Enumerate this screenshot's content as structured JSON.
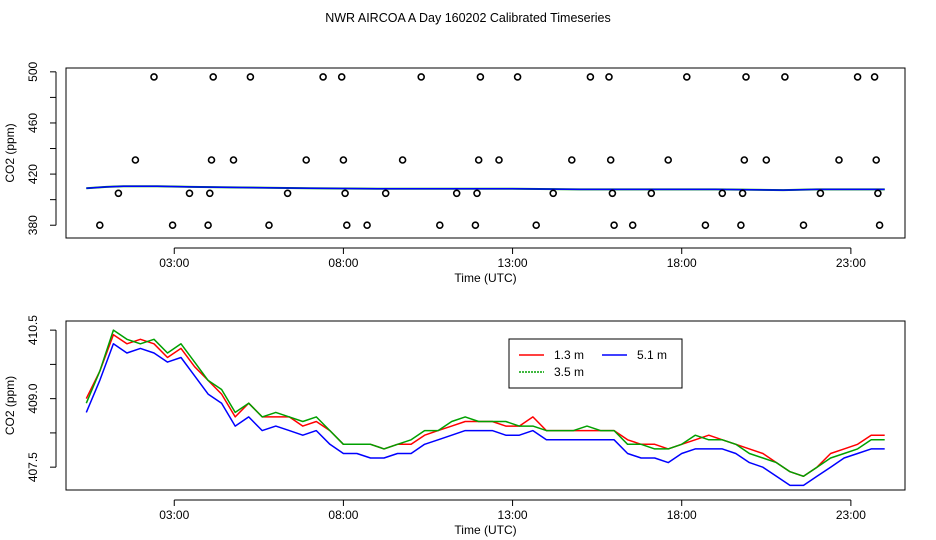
{
  "title": "NWR AIRCOA A  Day 160202  Calibrated Timeseries",
  "chart_data": [
    {
      "type": "scatter",
      "xlabel": "Time (UTC)",
      "ylabel": "CO2 (ppm)",
      "xlim": [
        -0.2,
        24.6
      ],
      "ylim": [
        370,
        503
      ],
      "xticks": [
        3,
        8,
        13,
        18,
        23
      ],
      "xtick_labels": [
        "03:00",
        "08:00",
        "13:00",
        "18:00",
        "23:00"
      ],
      "yticks": [
        380,
        420,
        460,
        500
      ],
      "ytick_labels": [
        "380",
        "420",
        "460",
        "500"
      ],
      "grid": false,
      "points": [
        {
          "x": 0.8,
          "y": 380
        },
        {
          "x": 1.35,
          "y": 405
        },
        {
          "x": 1.85,
          "y": 431
        },
        {
          "x": 2.4,
          "y": 496
        },
        {
          "x": 2.95,
          "y": 380
        },
        {
          "x": 3.45,
          "y": 405
        },
        {
          "x": 4.0,
          "y": 380
        },
        {
          "x": 4.05,
          "y": 405
        },
        {
          "x": 4.1,
          "y": 431
        },
        {
          "x": 4.15,
          "y": 496
        },
        {
          "x": 4.75,
          "y": 431
        },
        {
          "x": 5.25,
          "y": 496
        },
        {
          "x": 5.8,
          "y": 380
        },
        {
          "x": 6.35,
          "y": 405
        },
        {
          "x": 6.9,
          "y": 431
        },
        {
          "x": 7.4,
          "y": 496
        },
        {
          "x": 7.95,
          "y": 496
        },
        {
          "x": 8.0,
          "y": 431
        },
        {
          "x": 8.05,
          "y": 405
        },
        {
          "x": 8.1,
          "y": 380
        },
        {
          "x": 8.7,
          "y": 380
        },
        {
          "x": 9.25,
          "y": 405
        },
        {
          "x": 9.75,
          "y": 431
        },
        {
          "x": 10.3,
          "y": 496
        },
        {
          "x": 10.85,
          "y": 380
        },
        {
          "x": 11.35,
          "y": 405
        },
        {
          "x": 11.9,
          "y": 380
        },
        {
          "x": 11.95,
          "y": 405
        },
        {
          "x": 12.0,
          "y": 431
        },
        {
          "x": 12.05,
          "y": 496
        },
        {
          "x": 12.6,
          "y": 431
        },
        {
          "x": 13.15,
          "y": 496
        },
        {
          "x": 13.7,
          "y": 380
        },
        {
          "x": 14.2,
          "y": 405
        },
        {
          "x": 14.75,
          "y": 431
        },
        {
          "x": 15.3,
          "y": 496
        },
        {
          "x": 15.85,
          "y": 496
        },
        {
          "x": 15.9,
          "y": 431
        },
        {
          "x": 15.95,
          "y": 405
        },
        {
          "x": 16.0,
          "y": 380
        },
        {
          "x": 16.55,
          "y": 380
        },
        {
          "x": 17.1,
          "y": 405
        },
        {
          "x": 17.6,
          "y": 431
        },
        {
          "x": 18.15,
          "y": 496
        },
        {
          "x": 18.7,
          "y": 380
        },
        {
          "x": 19.2,
          "y": 405
        },
        {
          "x": 19.75,
          "y": 380
        },
        {
          "x": 19.8,
          "y": 405
        },
        {
          "x": 19.85,
          "y": 431
        },
        {
          "x": 19.9,
          "y": 496
        },
        {
          "x": 20.5,
          "y": 431
        },
        {
          "x": 21.05,
          "y": 496
        },
        {
          "x": 21.6,
          "y": 380
        },
        {
          "x": 22.1,
          "y": 405
        },
        {
          "x": 22.65,
          "y": 431
        },
        {
          "x": 23.2,
          "y": 496
        },
        {
          "x": 23.7,
          "y": 496
        },
        {
          "x": 23.75,
          "y": 431
        },
        {
          "x": 23.8,
          "y": 405
        },
        {
          "x": 23.85,
          "y": 380
        }
      ],
      "line": {
        "x": [
          0.4,
          1.0,
          1.5,
          2.5,
          3.5,
          5.0,
          7.0,
          9.0,
          11.0,
          13.0,
          15.0,
          17.0,
          19.0,
          21.0,
          22.0,
          23.0,
          24.0
        ],
        "y": [
          409,
          410,
          410.5,
          410.5,
          410,
          409.5,
          409,
          408.5,
          408.5,
          408.5,
          408,
          408,
          408,
          407.5,
          408,
          408,
          408
        ]
      }
    },
    {
      "type": "line",
      "xlabel": "Time (UTC)",
      "ylabel": "CO2 (ppm)",
      "xlim": [
        -0.2,
        24.6
      ],
      "ylim": [
        407.0,
        410.7
      ],
      "xticks": [
        3,
        8,
        13,
        18,
        23
      ],
      "xtick_labels": [
        "03:00",
        "08:00",
        "13:00",
        "18:00",
        "23:00"
      ],
      "yticks": [
        407.5,
        409.0,
        410.5
      ],
      "ytick_labels": [
        "407.5",
        "409.0",
        "410.5"
      ],
      "grid": false,
      "legend": "top-center",
      "series": [
        {
          "name": "1.3 m",
          "color": "#ff0000",
          "x": [
            0.4,
            0.8,
            1.2,
            1.6,
            2.0,
            2.4,
            2.8,
            3.2,
            3.6,
            4.0,
            4.4,
            4.8,
            5.2,
            5.6,
            6.0,
            6.4,
            6.8,
            7.2,
            7.6,
            8.0,
            8.4,
            8.8,
            9.2,
            9.6,
            10.0,
            10.4,
            10.8,
            11.2,
            11.6,
            12.0,
            12.4,
            12.8,
            13.2,
            13.6,
            14.0,
            14.4,
            14.8,
            15.2,
            15.6,
            16.0,
            16.4,
            16.8,
            17.2,
            17.6,
            18.0,
            18.4,
            18.8,
            19.2,
            19.6,
            20.0,
            20.4,
            20.8,
            21.2,
            21.6,
            22.0,
            22.4,
            22.8,
            23.2,
            23.6,
            24.0
          ],
          "y": [
            409.0,
            409.6,
            410.4,
            410.2,
            410.3,
            410.2,
            409.9,
            410.1,
            409.7,
            409.4,
            409.1,
            408.6,
            408.9,
            408.6,
            408.6,
            408.6,
            408.4,
            408.5,
            408.3,
            408.0,
            408.0,
            408.0,
            407.9,
            408.0,
            408.0,
            408.2,
            408.3,
            408.4,
            408.5,
            408.5,
            408.5,
            408.4,
            408.4,
            408.6,
            408.3,
            408.3,
            408.3,
            408.3,
            408.3,
            408.3,
            408.1,
            408.0,
            408.0,
            407.9,
            408.0,
            408.1,
            408.2,
            408.1,
            408.0,
            407.9,
            407.8,
            407.6,
            407.4,
            407.3,
            407.5,
            407.8,
            407.9,
            408.0,
            408.2,
            408.2
          ]
        },
        {
          "name": "3.5 m",
          "color": "#00a000",
          "x": [
            0.4,
            0.8,
            1.2,
            1.6,
            2.0,
            2.4,
            2.8,
            3.2,
            3.6,
            4.0,
            4.4,
            4.8,
            5.2,
            5.6,
            6.0,
            6.4,
            6.8,
            7.2,
            7.6,
            8.0,
            8.4,
            8.8,
            9.2,
            9.6,
            10.0,
            10.4,
            10.8,
            11.2,
            11.6,
            12.0,
            12.4,
            12.8,
            13.2,
            13.6,
            14.0,
            14.4,
            14.8,
            15.2,
            15.6,
            16.0,
            16.4,
            16.8,
            17.2,
            17.6,
            18.0,
            18.4,
            18.8,
            19.2,
            19.6,
            20.0,
            20.4,
            20.8,
            21.2,
            21.6,
            22.0,
            22.4,
            22.8,
            23.2,
            23.6,
            24.0
          ],
          "y": [
            408.9,
            409.6,
            410.5,
            410.3,
            410.2,
            410.3,
            410.0,
            410.2,
            409.8,
            409.4,
            409.2,
            408.7,
            408.9,
            408.6,
            408.7,
            408.6,
            408.5,
            408.6,
            408.3,
            408.0,
            408.0,
            408.0,
            407.9,
            408.0,
            408.1,
            408.3,
            408.3,
            408.5,
            408.6,
            408.5,
            408.5,
            408.5,
            408.4,
            408.4,
            408.3,
            408.3,
            408.3,
            408.4,
            408.3,
            408.3,
            408.0,
            408.0,
            407.9,
            407.9,
            408.0,
            408.2,
            408.1,
            408.1,
            408.0,
            407.8,
            407.7,
            407.6,
            407.4,
            407.3,
            407.5,
            407.7,
            407.8,
            407.9,
            408.1,
            408.1
          ]
        },
        {
          "name": "5.1 m",
          "color": "#0000ff",
          "x": [
            0.4,
            0.8,
            1.2,
            1.6,
            2.0,
            2.4,
            2.8,
            3.2,
            3.6,
            4.0,
            4.4,
            4.8,
            5.2,
            5.6,
            6.0,
            6.4,
            6.8,
            7.2,
            7.6,
            8.0,
            8.4,
            8.8,
            9.2,
            9.6,
            10.0,
            10.4,
            10.8,
            11.2,
            11.6,
            12.0,
            12.4,
            12.8,
            13.2,
            13.6,
            14.0,
            14.4,
            14.8,
            15.2,
            15.6,
            16.0,
            16.4,
            16.8,
            17.2,
            17.6,
            18.0,
            18.4,
            18.8,
            19.2,
            19.6,
            20.0,
            20.4,
            20.8,
            21.2,
            21.6,
            22.0,
            22.4,
            22.8,
            23.2,
            23.6,
            24.0
          ],
          "y": [
            408.7,
            409.4,
            410.2,
            410.0,
            410.1,
            410.0,
            409.8,
            409.9,
            409.5,
            409.1,
            408.9,
            408.4,
            408.6,
            408.3,
            408.4,
            408.3,
            408.2,
            408.3,
            408.0,
            407.8,
            407.8,
            407.7,
            407.7,
            407.8,
            407.8,
            408.0,
            408.1,
            408.2,
            408.3,
            408.3,
            408.3,
            408.2,
            408.2,
            408.3,
            408.1,
            408.1,
            408.1,
            408.1,
            408.1,
            408.1,
            407.8,
            407.7,
            407.7,
            407.6,
            407.8,
            407.9,
            407.9,
            407.9,
            407.8,
            407.6,
            407.5,
            407.3,
            407.1,
            407.1,
            407.3,
            407.5,
            407.7,
            407.8,
            407.9,
            407.9
          ]
        }
      ]
    }
  ]
}
